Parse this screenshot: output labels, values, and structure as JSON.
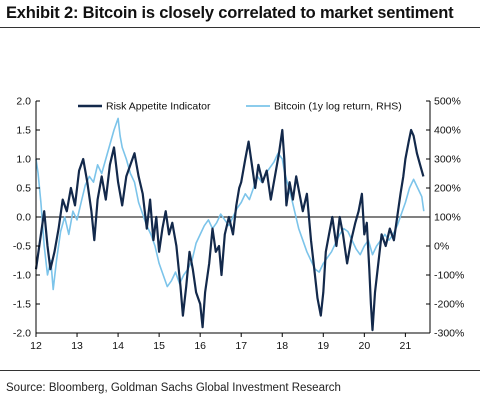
{
  "title": "Exhibit 2: Bitcoin is closely correlated to market sentiment",
  "source": "Source: Bloomberg, Goldman Sachs Global Investment Research",
  "chart_data": {
    "type": "line",
    "x_domain": [
      2012.0,
      2021.6
    ],
    "x_ticks": [
      2012,
      2013,
      2014,
      2015,
      2016,
      2017,
      2018,
      2019,
      2020,
      2021
    ],
    "x_tick_labels": [
      "12",
      "13",
      "14",
      "15",
      "16",
      "17",
      "18",
      "19",
      "20",
      "21"
    ],
    "left_axis": {
      "range": [
        -2.0,
        2.0
      ],
      "ticks": [
        2.0,
        1.5,
        1.0,
        0.5,
        0.0,
        -0.5,
        -1.0,
        -1.5,
        -2.0
      ],
      "tick_labels": [
        "2.0",
        "1.5",
        "1.0",
        "0.5",
        "0.0",
        "-0.5",
        "-1.0",
        "-1.5",
        "-2.0"
      ]
    },
    "right_axis": {
      "range": [
        -300,
        500
      ],
      "ticks": [
        500,
        400,
        300,
        200,
        100,
        0,
        -100,
        -200,
        -300
      ],
      "tick_labels": [
        "500%",
        "400%",
        "300%",
        "200%",
        "100%",
        "0%",
        "-100%",
        "-200%",
        "-300%"
      ]
    },
    "zero_line": true,
    "legend_position": "top",
    "series": [
      {
        "name": "Risk Appetite Indicator",
        "axis": "left",
        "color": "#13294b",
        "points": [
          [
            2012.0,
            -0.9
          ],
          [
            2012.1,
            -0.4
          ],
          [
            2012.2,
            0.1
          ],
          [
            2012.28,
            -0.5
          ],
          [
            2012.35,
            -0.9
          ],
          [
            2012.45,
            -0.6
          ],
          [
            2012.55,
            -0.2
          ],
          [
            2012.65,
            0.3
          ],
          [
            2012.75,
            0.1
          ],
          [
            2012.85,
            0.5
          ],
          [
            2012.95,
            0.2
          ],
          [
            2013.05,
            0.8
          ],
          [
            2013.15,
            1.0
          ],
          [
            2013.25,
            0.6
          ],
          [
            2013.35,
            0.1
          ],
          [
            2013.42,
            -0.4
          ],
          [
            2013.5,
            0.3
          ],
          [
            2013.6,
            0.7
          ],
          [
            2013.7,
            0.3
          ],
          [
            2013.8,
            0.9
          ],
          [
            2013.9,
            1.2
          ],
          [
            2014.0,
            0.6
          ],
          [
            2014.1,
            0.2
          ],
          [
            2014.2,
            0.7
          ],
          [
            2014.3,
            0.9
          ],
          [
            2014.4,
            1.1
          ],
          [
            2014.5,
            0.7
          ],
          [
            2014.6,
            0.4
          ],
          [
            2014.7,
            -0.2
          ],
          [
            2014.78,
            0.3
          ],
          [
            2014.86,
            -0.4
          ],
          [
            2014.93,
            0.0
          ],
          [
            2015.0,
            -0.6
          ],
          [
            2015.08,
            -0.2
          ],
          [
            2015.16,
            0.1
          ],
          [
            2015.24,
            -0.3
          ],
          [
            2015.32,
            -0.1
          ],
          [
            2015.42,
            -0.5
          ],
          [
            2015.52,
            -1.2
          ],
          [
            2015.58,
            -1.7
          ],
          [
            2015.66,
            -1.2
          ],
          [
            2015.74,
            -0.6
          ],
          [
            2015.82,
            -0.9
          ],
          [
            2015.9,
            -1.3
          ],
          [
            2016.0,
            -1.5
          ],
          [
            2016.06,
            -1.9
          ],
          [
            2016.12,
            -1.3
          ],
          [
            2016.22,
            -0.8
          ],
          [
            2016.3,
            -0.2
          ],
          [
            2016.38,
            -0.6
          ],
          [
            2016.46,
            -0.5
          ],
          [
            2016.52,
            -1.0
          ],
          [
            2016.6,
            -0.3
          ],
          [
            2016.7,
            0.0
          ],
          [
            2016.8,
            -0.3
          ],
          [
            2016.88,
            0.2
          ],
          [
            2016.95,
            0.5
          ],
          [
            2017.0,
            0.6
          ],
          [
            2017.1,
            1.0
          ],
          [
            2017.18,
            1.3
          ],
          [
            2017.26,
            0.9
          ],
          [
            2017.34,
            0.5
          ],
          [
            2017.42,
            0.9
          ],
          [
            2017.52,
            0.6
          ],
          [
            2017.62,
            0.8
          ],
          [
            2017.72,
            0.3
          ],
          [
            2017.82,
            0.7
          ],
          [
            2017.92,
            1.1
          ],
          [
            2018.0,
            1.5
          ],
          [
            2018.05,
            1.0
          ],
          [
            2018.1,
            0.2
          ],
          [
            2018.18,
            0.6
          ],
          [
            2018.26,
            0.3
          ],
          [
            2018.34,
            0.7
          ],
          [
            2018.42,
            0.4
          ],
          [
            2018.5,
            0.1
          ],
          [
            2018.6,
            0.4
          ],
          [
            2018.7,
            -0.4
          ],
          [
            2018.78,
            -0.9
          ],
          [
            2018.86,
            -1.4
          ],
          [
            2018.94,
            -1.7
          ],
          [
            2019.0,
            -1.3
          ],
          [
            2019.06,
            -0.6
          ],
          [
            2019.14,
            -0.3
          ],
          [
            2019.22,
            0.0
          ],
          [
            2019.32,
            -0.5
          ],
          [
            2019.4,
            0.0
          ],
          [
            2019.48,
            -0.3
          ],
          [
            2019.58,
            -0.8
          ],
          [
            2019.68,
            -0.4
          ],
          [
            2019.78,
            -0.1
          ],
          [
            2019.86,
            0.1
          ],
          [
            2019.94,
            0.4
          ],
          [
            2020.0,
            -0.3
          ],
          [
            2020.06,
            -0.1
          ],
          [
            2020.12,
            -0.9
          ],
          [
            2020.16,
            -1.5
          ],
          [
            2020.2,
            -1.95
          ],
          [
            2020.26,
            -1.3
          ],
          [
            2020.34,
            -0.8
          ],
          [
            2020.42,
            -0.3
          ],
          [
            2020.52,
            -0.5
          ],
          [
            2020.62,
            -0.2
          ],
          [
            2020.72,
            -0.4
          ],
          [
            2020.8,
            0.0
          ],
          [
            2020.88,
            0.4
          ],
          [
            2020.95,
            0.7
          ],
          [
            2021.0,
            1.0
          ],
          [
            2021.08,
            1.3
          ],
          [
            2021.14,
            1.5
          ],
          [
            2021.2,
            1.4
          ],
          [
            2021.28,
            1.1
          ],
          [
            2021.36,
            0.9
          ],
          [
            2021.44,
            0.7
          ]
        ]
      },
      {
        "name": "Bitcoin (1y log return, RHS)",
        "axis": "right",
        "color": "#7cc4ea",
        "points": [
          [
            2012.0,
            300
          ],
          [
            2012.05,
            250
          ],
          [
            2012.12,
            150
          ],
          [
            2012.2,
            0
          ],
          [
            2012.28,
            -100
          ],
          [
            2012.36,
            -50
          ],
          [
            2012.42,
            -150
          ],
          [
            2012.5,
            -50
          ],
          [
            2012.6,
            50
          ],
          [
            2012.7,
            100
          ],
          [
            2012.8,
            40
          ],
          [
            2012.9,
            120
          ],
          [
            2013.0,
            90
          ],
          [
            2013.1,
            150
          ],
          [
            2013.2,
            210
          ],
          [
            2013.3,
            240
          ],
          [
            2013.4,
            220
          ],
          [
            2013.5,
            280
          ],
          [
            2013.6,
            250
          ],
          [
            2013.7,
            300
          ],
          [
            2013.8,
            350
          ],
          [
            2013.9,
            400
          ],
          [
            2014.0,
            440
          ],
          [
            2014.05,
            380
          ],
          [
            2014.1,
            340
          ],
          [
            2014.2,
            300
          ],
          [
            2014.3,
            250
          ],
          [
            2014.4,
            220
          ],
          [
            2014.5,
            150
          ],
          [
            2014.6,
            110
          ],
          [
            2014.7,
            70
          ],
          [
            2014.8,
            40
          ],
          [
            2014.9,
            0
          ],
          [
            2015.0,
            -60
          ],
          [
            2015.1,
            -100
          ],
          [
            2015.2,
            -140
          ],
          [
            2015.3,
            -120
          ],
          [
            2015.4,
            -90
          ],
          [
            2015.5,
            -130
          ],
          [
            2015.6,
            -100
          ],
          [
            2015.7,
            -80
          ],
          [
            2015.8,
            -50
          ],
          [
            2015.9,
            10
          ],
          [
            2016.0,
            40
          ],
          [
            2016.1,
            70
          ],
          [
            2016.2,
            90
          ],
          [
            2016.3,
            60
          ],
          [
            2016.4,
            80
          ],
          [
            2016.5,
            110
          ],
          [
            2016.6,
            90
          ],
          [
            2016.7,
            70
          ],
          [
            2016.8,
            100
          ],
          [
            2016.9,
            130
          ],
          [
            2017.0,
            150
          ],
          [
            2017.1,
            180
          ],
          [
            2017.2,
            160
          ],
          [
            2017.3,
            200
          ],
          [
            2017.4,
            240
          ],
          [
            2017.5,
            220
          ],
          [
            2017.6,
            250
          ],
          [
            2017.7,
            270
          ],
          [
            2017.8,
            290
          ],
          [
            2017.9,
            320
          ],
          [
            2018.0,
            300
          ],
          [
            2018.05,
            260
          ],
          [
            2018.1,
            230
          ],
          [
            2018.2,
            180
          ],
          [
            2018.3,
            120
          ],
          [
            2018.4,
            60
          ],
          [
            2018.5,
            20
          ],
          [
            2018.6,
            -20
          ],
          [
            2018.7,
            -50
          ],
          [
            2018.8,
            -80
          ],
          [
            2018.9,
            -90
          ],
          [
            2019.0,
            -60
          ],
          [
            2019.1,
            -40
          ],
          [
            2019.2,
            -20
          ],
          [
            2019.3,
            10
          ],
          [
            2019.4,
            40
          ],
          [
            2019.5,
            60
          ],
          [
            2019.6,
            50
          ],
          [
            2019.7,
            20
          ],
          [
            2019.8,
            -10
          ],
          [
            2019.9,
            -30
          ],
          [
            2020.0,
            0
          ],
          [
            2020.1,
            20
          ],
          [
            2020.2,
            -30
          ],
          [
            2020.3,
            0
          ],
          [
            2020.4,
            20
          ],
          [
            2020.5,
            40
          ],
          [
            2020.6,
            20
          ],
          [
            2020.7,
            40
          ],
          [
            2020.8,
            70
          ],
          [
            2020.9,
            110
          ],
          [
            2021.0,
            150
          ],
          [
            2021.1,
            200
          ],
          [
            2021.2,
            230
          ],
          [
            2021.3,
            200
          ],
          [
            2021.4,
            170
          ],
          [
            2021.45,
            120
          ]
        ]
      }
    ]
  }
}
